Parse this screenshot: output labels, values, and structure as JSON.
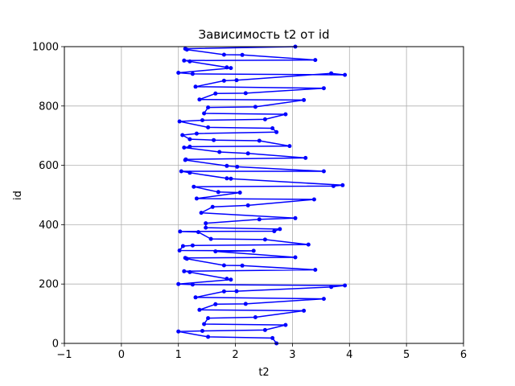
{
  "chart_data": {
    "type": "line",
    "title": "Зависимость t2 от id",
    "xlabel": "t2",
    "ylabel": "id",
    "xlim": [
      -1,
      6
    ],
    "ylim": [
      0,
      1000
    ],
    "xticks": [
      "−1",
      "0",
      "1",
      "2",
      "3",
      "4",
      "5",
      "6"
    ],
    "yticks": [
      "0",
      "200",
      "400",
      "600",
      "800",
      "1000"
    ],
    "grid": true,
    "line_color": "#0000ff",
    "marker": "circle",
    "series": [
      {
        "points": [
          [
            2.72,
            0
          ],
          [
            2.65,
            18
          ],
          [
            1.52,
            22
          ],
          [
            1.0,
            40
          ],
          [
            1.42,
            42
          ],
          [
            2.52,
            45
          ],
          [
            2.88,
            62
          ],
          [
            1.45,
            65
          ],
          [
            1.52,
            85
          ],
          [
            2.35,
            88
          ],
          [
            3.2,
            110
          ],
          [
            1.37,
            113
          ],
          [
            1.65,
            132
          ],
          [
            2.18,
            133
          ],
          [
            3.55,
            150
          ],
          [
            1.3,
            155
          ],
          [
            1.8,
            175
          ],
          [
            2.02,
            176
          ],
          [
            3.68,
            190
          ],
          [
            3.92,
            195
          ],
          [
            1.25,
            198
          ],
          [
            1.0,
            200
          ],
          [
            1.92,
            215
          ],
          [
            1.85,
            218
          ],
          [
            1.2,
            240
          ],
          [
            1.1,
            243
          ],
          [
            3.4,
            248
          ],
          [
            2.12,
            262
          ],
          [
            1.8,
            263
          ],
          [
            1.15,
            285
          ],
          [
            1.12,
            288
          ],
          [
            3.05,
            290
          ],
          [
            1.65,
            310
          ],
          [
            2.32,
            312
          ],
          [
            1.02,
            313
          ],
          [
            1.08,
            328
          ],
          [
            1.25,
            330
          ],
          [
            3.28,
            333
          ],
          [
            2.52,
            350
          ],
          [
            1.57,
            352
          ],
          [
            1.35,
            375
          ],
          [
            1.03,
            377
          ],
          [
            2.68,
            378
          ],
          [
            2.78,
            385
          ],
          [
            1.48,
            390
          ],
          [
            1.48,
            405
          ],
          [
            2.42,
            418
          ],
          [
            3.05,
            422
          ],
          [
            1.4,
            440
          ],
          [
            1.6,
            460
          ],
          [
            2.22,
            465
          ],
          [
            3.38,
            485
          ],
          [
            1.32,
            488
          ],
          [
            2.08,
            508
          ],
          [
            1.7,
            510
          ],
          [
            1.27,
            528
          ],
          [
            3.72,
            530
          ],
          [
            3.88,
            533
          ],
          [
            1.92,
            555
          ],
          [
            1.85,
            556
          ],
          [
            1.2,
            575
          ],
          [
            1.05,
            580
          ],
          [
            3.55,
            580
          ],
          [
            2.03,
            595
          ],
          [
            1.85,
            598
          ],
          [
            1.12,
            618
          ],
          [
            1.13,
            620
          ],
          [
            3.23,
            625
          ],
          [
            2.22,
            640
          ],
          [
            1.72,
            645
          ],
          [
            1.1,
            660
          ],
          [
            1.2,
            663
          ],
          [
            2.95,
            665
          ],
          [
            2.42,
            683
          ],
          [
            1.62,
            685
          ],
          [
            1.2,
            688
          ],
          [
            1.07,
            702
          ],
          [
            1.32,
            707
          ],
          [
            2.72,
            712
          ],
          [
            2.65,
            725
          ],
          [
            1.52,
            728
          ],
          [
            1.02,
            748
          ],
          [
            1.42,
            752
          ],
          [
            2.52,
            755
          ],
          [
            2.88,
            772
          ],
          [
            1.45,
            775
          ],
          [
            1.52,
            795
          ],
          [
            2.35,
            797
          ],
          [
            3.2,
            820
          ],
          [
            1.37,
            822
          ],
          [
            1.65,
            842
          ],
          [
            2.18,
            843
          ],
          [
            3.55,
            860
          ],
          [
            1.3,
            865
          ],
          [
            1.8,
            885
          ],
          [
            2.02,
            887
          ],
          [
            3.68,
            910
          ],
          [
            3.92,
            905
          ],
          [
            1.25,
            908
          ],
          [
            1.0,
            912
          ],
          [
            1.92,
            928
          ],
          [
            1.85,
            930
          ],
          [
            1.2,
            950
          ],
          [
            1.1,
            953
          ],
          [
            3.4,
            955
          ],
          [
            2.12,
            972
          ],
          [
            1.8,
            973
          ],
          [
            1.15,
            990
          ],
          [
            1.12,
            993
          ],
          [
            3.05,
            1000
          ]
        ]
      }
    ]
  }
}
